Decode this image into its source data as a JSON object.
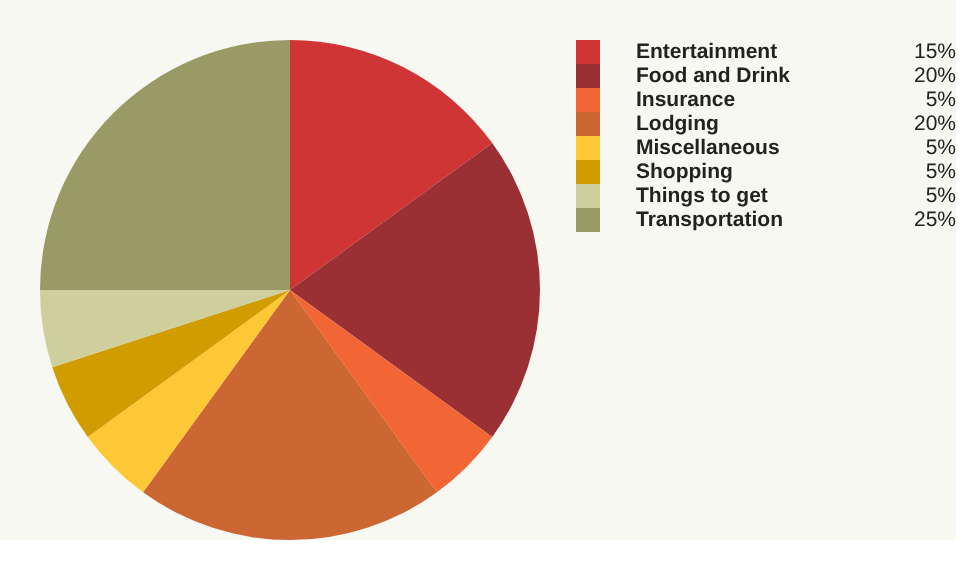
{
  "chart_data": {
    "type": "pie",
    "categories": [
      "Entertainment",
      "Food and Drink",
      "Insurance",
      "Lodging",
      "Miscellaneous",
      "Shopping",
      "Things to get",
      "Transportation"
    ],
    "values": [
      15,
      20,
      5,
      20,
      5,
      5,
      5,
      25
    ],
    "value_labels": [
      "15%",
      "20%",
      "5%",
      "20%",
      "5%",
      "5%",
      "5%",
      "25%"
    ],
    "colors": [
      "#cf3535",
      "#9b3034",
      "#f26534",
      "#cc6633",
      "#fdc835",
      "#d19c00",
      "#cfcf9e",
      "#9a9a66"
    ],
    "legend": "top right"
  }
}
